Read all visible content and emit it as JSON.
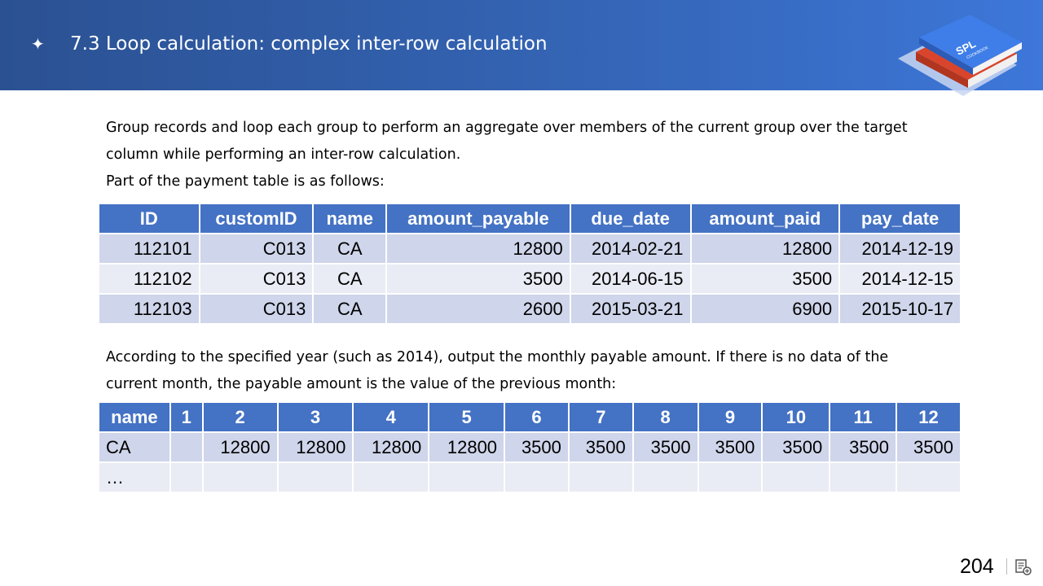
{
  "header": {
    "star_glyph": "✦",
    "title": "7.3 Loop calculation: complex inter-row calculation",
    "logo_text": "SPL",
    "logo_subtext": "COOKBOOK"
  },
  "intro": {
    "line1": "Group records and loop each group to perform an aggregate over members of the current group over the target",
    "line2": "column while performing an inter-row calculation.",
    "line3": "Part of the payment table is as follows:"
  },
  "payment_table": {
    "headers": [
      "ID",
      "customID",
      "name",
      "amount_payable",
      "due_date",
      "amount_paid",
      "pay_date"
    ],
    "rows": [
      [
        "112101",
        "C013",
        "CA",
        "12800",
        "2014-02-21",
        "12800",
        "2014-12-19"
      ],
      [
        "112102",
        "C013",
        "CA",
        "3500",
        "2014-06-15",
        "3500",
        "2014-12-15"
      ],
      [
        "112103",
        "C013",
        "CA",
        "2600",
        "2015-03-21",
        "6900",
        "2015-10-17"
      ]
    ]
  },
  "middle_text": {
    "line1": "According to the specified year (such as 2014), output the monthly payable amount.  If there is no data of the",
    "line2": "current month, the payable amount is the value of the previous month:"
  },
  "result_table": {
    "headers": [
      "name",
      "1",
      "2",
      "3",
      "4",
      "5",
      "6",
      "7",
      "8",
      "9",
      "10",
      "11",
      "12"
    ],
    "rows": [
      [
        "CA",
        "",
        "12800",
        "12800",
        "12800",
        "12800",
        "3500",
        "3500",
        "3500",
        "3500",
        "3500",
        "3500",
        "3500"
      ],
      [
        "…",
        "",
        "",
        "",
        "",
        "",
        "",
        "",
        "",
        "",
        "",
        "",
        ""
      ]
    ]
  },
  "footer": {
    "page_number": "204"
  },
  "colors": {
    "header_bg": "#2b5192",
    "table_header": "#4472c4",
    "row_odd": "#cfd5ea",
    "row_even": "#e9ebf5"
  }
}
